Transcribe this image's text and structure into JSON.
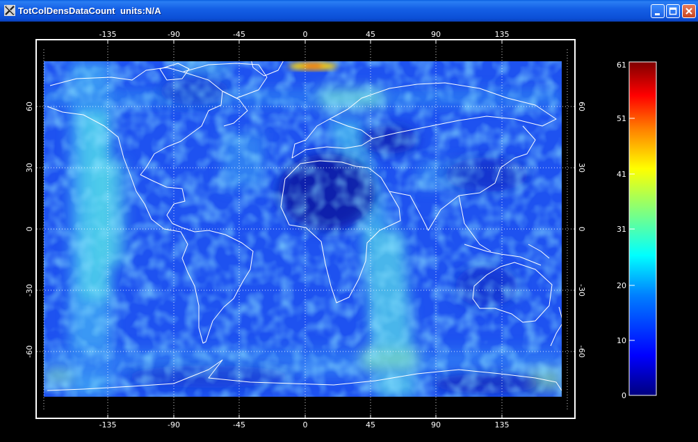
{
  "window": {
    "title": "TotColDensDataCount  units:N/A",
    "colors": {
      "titlebar": "#0b4fd6",
      "background": "#000000",
      "coastline": "#ffffff",
      "gridline": "#ffffff"
    }
  },
  "map": {
    "top_lon_ticks": [
      "-135",
      "-90",
      "-45",
      "0",
      "45",
      "90",
      "135"
    ],
    "bottom_lon_ticks": [
      "-135",
      "-90",
      "-45",
      "0",
      "45",
      "90",
      "135"
    ],
    "left_lat_ticks": [
      "60",
      "30",
      "0",
      "-30",
      "-60"
    ],
    "right_lat_ticks": [
      "60",
      "30",
      "0",
      "-30",
      "-60"
    ]
  },
  "colorbar": {
    "tick_labels": [
      "61",
      "51",
      "41",
      "31",
      "20",
      "10",
      "0"
    ],
    "min": 0,
    "max": 61,
    "colormap": [
      "#00007f",
      "#0000ff",
      "#007fff",
      "#00ffff",
      "#7fff7f",
      "#ffff00",
      "#ff7f00",
      "#ff0000",
      "#7f0000"
    ]
  }
}
